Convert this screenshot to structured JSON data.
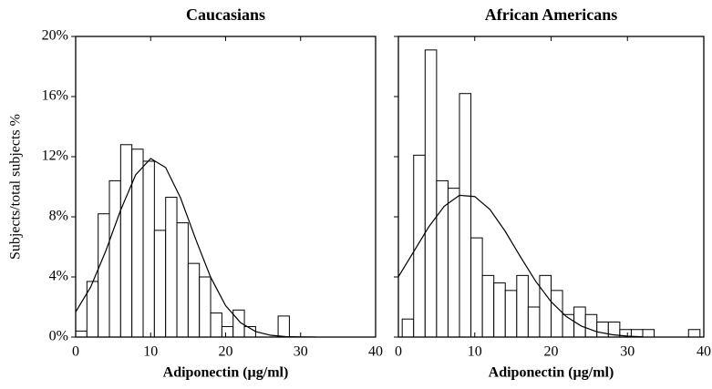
{
  "chart_data": [
    {
      "type": "histogram",
      "title": "Caucasians",
      "xlabel": "Adiponectin (µg/ml)",
      "ylabel": "Subjects/total subjects %",
      "bins": [
        0,
        1.5,
        3,
        4.5,
        6,
        7.5,
        9,
        10.5,
        12,
        13.5,
        15,
        16.5,
        18,
        19.5,
        21,
        22.5,
        24,
        25.5,
        27,
        28.5
      ],
      "values": [
        0.4,
        3.7,
        8.2,
        10.4,
        12.8,
        12.5,
        11.7,
        7.1,
        9.3,
        7.6,
        4.9,
        4.0,
        1.6,
        0.7,
        1.8,
        0.7,
        0,
        0,
        1.4
      ],
      "curve": {
        "x": [
          0,
          2,
          4,
          6,
          8,
          10,
          12,
          14,
          16,
          18,
          20,
          22,
          24,
          26,
          28,
          30,
          32
        ],
        "values": [
          1.67,
          3.33,
          5.71,
          8.45,
          10.79,
          11.88,
          11.28,
          9.24,
          6.52,
          3.98,
          2.09,
          0.95,
          0.37,
          0.12,
          0.03,
          0.01,
          0
        ]
      },
      "xlim": [
        0,
        40
      ],
      "xticks": [
        0,
        10,
        20,
        30,
        40
      ],
      "ylim": [
        0,
        20
      ],
      "yticks": [
        {
          "value": 0,
          "label": "0%"
        },
        {
          "value": 4,
          "label": "4%"
        },
        {
          "value": 8,
          "label": "8%"
        },
        {
          "value": 12,
          "label": "12%"
        },
        {
          "value": 16,
          "label": "16%"
        },
        {
          "value": 20,
          "label": "20%"
        }
      ],
      "color": "#ffffff"
    },
    {
      "type": "histogram",
      "title": "African Americans",
      "xlabel": "Adiponectin (µg/ml)",
      "bins": [
        0.5,
        2,
        3.5,
        5,
        6.5,
        8,
        9.5,
        11,
        12.5,
        14,
        15.5,
        17,
        18.5,
        20,
        21.5,
        23,
        24.5,
        26,
        27.5,
        29,
        30.5,
        32,
        33.5,
        35,
        36.5,
        38,
        39.5
      ],
      "values": [
        1.2,
        12.1,
        19.1,
        10.4,
        9.9,
        16.2,
        6.6,
        4.1,
        3.6,
        3.1,
        4.1,
        2.0,
        4.1,
        3.1,
        1.5,
        2.0,
        1.5,
        1.0,
        1.0,
        0.5,
        0.5,
        0.5,
        0,
        0,
        0,
        0.5
      ],
      "curve": {
        "x": [
          0,
          2,
          4,
          6,
          8,
          10,
          12,
          14,
          16,
          18,
          20,
          22,
          24,
          26,
          28,
          30,
          32
        ],
        "values": [
          4.01,
          5.68,
          7.35,
          8.7,
          9.43,
          9.35,
          8.48,
          7.03,
          5.33,
          3.7,
          2.35,
          1.36,
          0.72,
          0.35,
          0.16,
          0.06,
          0.02
        ]
      },
      "xlim": [
        0,
        40
      ],
      "xticks": [
        0,
        10,
        20,
        30,
        40
      ],
      "ylim": [
        0,
        20
      ],
      "color": "#ffffff"
    }
  ]
}
